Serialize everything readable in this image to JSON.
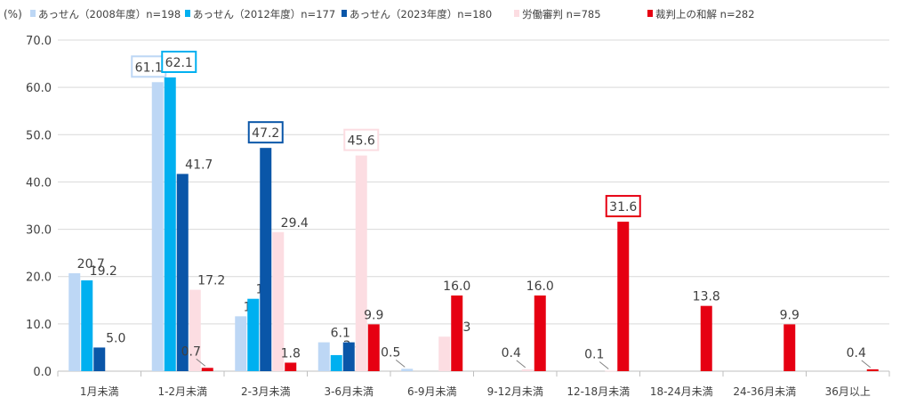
{
  "chart_data": {
    "type": "bar",
    "ylabel": "(%)",
    "ylim": [
      0,
      70
    ],
    "yticks": [
      "0.0",
      "10.0",
      "20.0",
      "30.0",
      "40.0",
      "50.0",
      "60.0",
      "70.0"
    ],
    "grid": true,
    "legend_position": "top",
    "categories": [
      "1月未満",
      "1-2月未満",
      "2-3月未満",
      "3-6月未満",
      "6-9月未満",
      "9-12月未満",
      "12-18月未満",
      "18-24月未満",
      "24-36月未満",
      "36月以上"
    ],
    "series": [
      {
        "name": "あっせん（2008年度）n=198",
        "color": "#bdd7f5",
        "values": [
          20.7,
          61.1,
          11.6,
          6.1,
          0.5,
          null,
          null,
          null,
          null,
          null
        ],
        "boxed": [
          1
        ]
      },
      {
        "name": "あっせん（2012年度）n=177",
        "color": "#00b0f0",
        "values": [
          19.2,
          62.1,
          15.3,
          3.4,
          null,
          null,
          null,
          null,
          null,
          null
        ],
        "boxed": [
          1
        ]
      },
      {
        "name": "あっせん（2023年度）n=180",
        "color": "#0a56a8",
        "values": [
          5.0,
          41.7,
          47.2,
          6.1,
          null,
          null,
          null,
          null,
          null,
          null
        ],
        "boxed": [
          2
        ]
      },
      {
        "name": "労働審判 n=785",
        "color": "#fcdde2",
        "values": [
          null,
          17.2,
          29.4,
          45.6,
          7.3,
          0.4,
          0.1,
          null,
          null,
          null
        ],
        "boxed": [
          3
        ]
      },
      {
        "name": "裁判上の和解 n=282",
        "color": "#e60012",
        "values": [
          null,
          0.7,
          1.8,
          9.9,
          16.0,
          16.0,
          31.6,
          13.8,
          9.9,
          0.4
        ],
        "boxed": [
          6
        ]
      }
    ]
  }
}
